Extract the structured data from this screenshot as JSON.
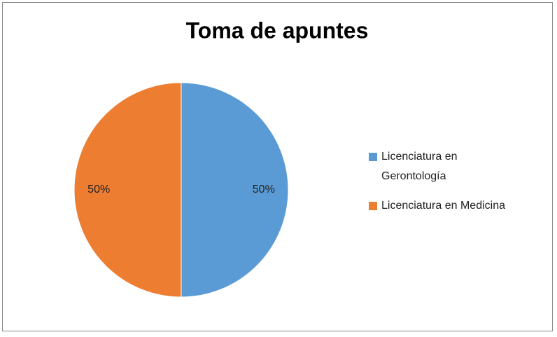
{
  "chart_data": {
    "type": "pie",
    "title": "Toma de apuntes",
    "categories": [
      "Licenciatura en Gerontología",
      "Licenciatura en Medicina"
    ],
    "values": [
      50,
      50
    ],
    "value_labels": [
      "50%",
      "50%"
    ],
    "colors": [
      "#5b9bd5",
      "#ed7d31"
    ],
    "legend": "right"
  }
}
